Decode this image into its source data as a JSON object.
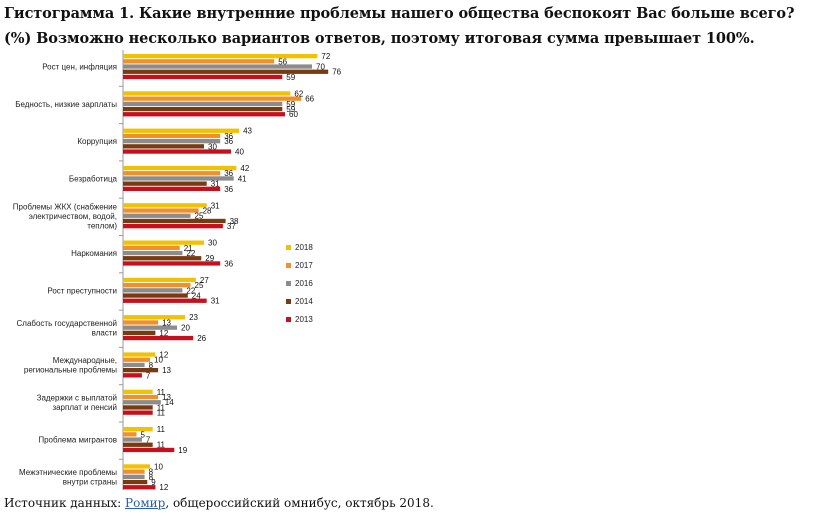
{
  "title_line1": "Гистограмма 1. Какие внутренние проблемы нашего общества беспокоят Вас больше всего?",
  "title_line2": "(%) Возможно несколько вариантов ответов, поэтому итоговая сумма превышает 100%.",
  "source": {
    "prefix": "Источник данных: ",
    "link_text": "Ромир",
    "suffix": ", общероссийский омнибус, октябрь 2018."
  },
  "colors": {
    "2018": "#f2c200",
    "2017": "#f0902a",
    "2016": "#8c8c8c",
    "2014": "#7a3a10",
    "2013": "#c8101c"
  },
  "chart_data": {
    "type": "bar",
    "orientation": "horizontal",
    "legend_position": "right",
    "grid": false,
    "xlim": [
      0,
      80
    ],
    "categories": [
      [
        "Рост цен, инфляция"
      ],
      [
        "Бедность, низкие зарплаты"
      ],
      [
        "Коррупция"
      ],
      [
        "Безработица"
      ],
      [
        "Проблемы ЖКХ (снабжение",
        "электричеством, водой,",
        "теплом)"
      ],
      [
        "Наркомания"
      ],
      [
        "Рост преступности"
      ],
      [
        "Слабость государственной",
        "власти"
      ],
      [
        "Международные,",
        "региональные проблемы"
      ],
      [
        "Задержки с выплатой",
        "зарплат и пенсий"
      ],
      [
        "Проблема мигрантов"
      ],
      [
        "Межэтнические проблемы",
        "внутри страны"
      ]
    ],
    "series": [
      {
        "name": "2018",
        "values": [
          72,
          62,
          43,
          42,
          31,
          30,
          27,
          23,
          12,
          11,
          11,
          10
        ]
      },
      {
        "name": "2017",
        "values": [
          56,
          66,
          36,
          36,
          28,
          21,
          25,
          13,
          10,
          13,
          5,
          8
        ]
      },
      {
        "name": "2016",
        "values": [
          70,
          59,
          36,
          41,
          25,
          22,
          22,
          20,
          8,
          14,
          7,
          8
        ]
      },
      {
        "name": "2014",
        "values": [
          76,
          59,
          30,
          31,
          38,
          29,
          24,
          12,
          13,
          11,
          11,
          9
        ]
      },
      {
        "name": "2013",
        "values": [
          59,
          60,
          40,
          36,
          37,
          36,
          31,
          26,
          7,
          11,
          19,
          12
        ]
      }
    ]
  }
}
